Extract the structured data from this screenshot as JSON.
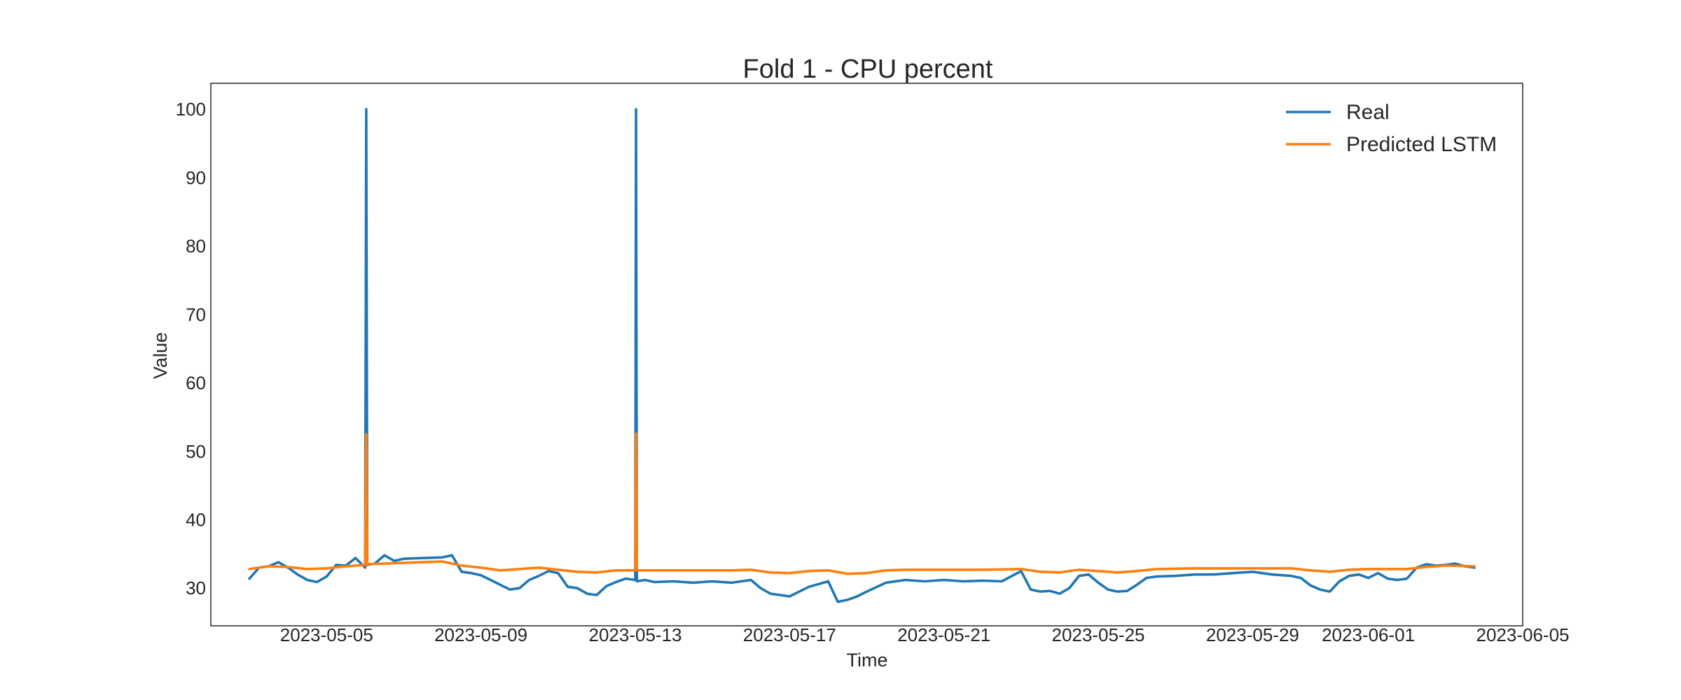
{
  "chart_data": {
    "type": "line",
    "title": "Fold 1 - CPU percent",
    "xlabel": "Time",
    "ylabel": "Value",
    "xlim": [
      "2023-05-02",
      "2023-06-05"
    ],
    "ylim": [
      24.5,
      103.8
    ],
    "x_ticks": [
      "2023-05-05",
      "2023-05-09",
      "2023-05-13",
      "2023-05-17",
      "2023-05-21",
      "2023-05-25",
      "2023-05-29",
      "2023-06-01",
      "2023-06-05"
    ],
    "y_ticks": [
      30,
      40,
      50,
      60,
      70,
      80,
      90,
      100
    ],
    "grid": false,
    "legend": {
      "placement": "top-right"
    },
    "series": [
      {
        "name": "Real",
        "color": "#1f77b4",
        "points": [
          [
            "2023-05-03 00:00",
            31.4
          ],
          [
            "2023-05-03 06:00",
            33.0
          ],
          [
            "2023-05-03 12:00",
            33.2
          ],
          [
            "2023-05-03 18:00",
            33.8
          ],
          [
            "2023-05-04 00:00",
            33.0
          ],
          [
            "2023-05-04 06:00",
            32.0
          ],
          [
            "2023-05-04 12:00",
            31.2
          ],
          [
            "2023-05-04 18:00",
            30.9
          ],
          [
            "2023-05-05 00:00",
            31.7
          ],
          [
            "2023-05-05 06:00",
            33.4
          ],
          [
            "2023-05-05 12:00",
            33.3
          ],
          [
            "2023-05-05 18:00",
            34.4
          ],
          [
            "2023-05-06 00:00",
            33.0
          ],
          [
            "2023-05-06 00:40",
            100.0
          ],
          [
            "2023-05-06 01:20",
            33.4
          ],
          [
            "2023-05-06 06:00",
            33.6
          ],
          [
            "2023-05-06 12:00",
            34.8
          ],
          [
            "2023-05-06 18:00",
            34.0
          ],
          [
            "2023-05-07 00:00",
            34.3
          ],
          [
            "2023-05-07 12:00",
            34.4
          ],
          [
            "2023-05-08 00:00",
            34.5
          ],
          [
            "2023-05-08 06:00",
            34.8
          ],
          [
            "2023-05-08 12:00",
            32.4
          ],
          [
            "2023-05-08 18:00",
            32.2
          ],
          [
            "2023-05-09 00:00",
            31.9
          ],
          [
            "2023-05-09 06:00",
            31.2
          ],
          [
            "2023-05-09 12:00",
            30.5
          ],
          [
            "2023-05-09 18:00",
            29.8
          ],
          [
            "2023-05-10 00:00",
            30.0
          ],
          [
            "2023-05-10 06:00",
            31.2
          ],
          [
            "2023-05-10 12:00",
            31.8
          ],
          [
            "2023-05-10 18:00",
            32.5
          ],
          [
            "2023-05-11 00:00",
            32.2
          ],
          [
            "2023-05-11 06:00",
            30.2
          ],
          [
            "2023-05-11 12:00",
            30.0
          ],
          [
            "2023-05-11 18:00",
            29.2
          ],
          [
            "2023-05-12 00:00",
            29.0
          ],
          [
            "2023-05-12 06:00",
            30.3
          ],
          [
            "2023-05-12 12:00",
            30.9
          ],
          [
            "2023-05-12 18:00",
            31.4
          ],
          [
            "2023-05-13 00:00",
            31.2
          ],
          [
            "2023-05-13 00:30",
            100.0
          ],
          [
            "2023-05-13 01:00",
            31.0
          ],
          [
            "2023-05-13 06:00",
            31.2
          ],
          [
            "2023-05-13 12:00",
            30.9
          ],
          [
            "2023-05-14 00:00",
            31.0
          ],
          [
            "2023-05-14 12:00",
            30.8
          ],
          [
            "2023-05-15 00:00",
            31.0
          ],
          [
            "2023-05-15 12:00",
            30.8
          ],
          [
            "2023-05-16 00:00",
            31.2
          ],
          [
            "2023-05-16 06:00",
            30.0
          ],
          [
            "2023-05-16 12:00",
            29.2
          ],
          [
            "2023-05-16 18:00",
            29.0
          ],
          [
            "2023-05-17 00:00",
            28.8
          ],
          [
            "2023-05-17 12:00",
            30.2
          ],
          [
            "2023-05-18 00:00",
            31.0
          ],
          [
            "2023-05-18 06:00",
            28.0
          ],
          [
            "2023-05-18 12:00",
            28.3
          ],
          [
            "2023-05-18 18:00",
            28.8
          ],
          [
            "2023-05-19 00:00",
            29.5
          ],
          [
            "2023-05-19 12:00",
            30.8
          ],
          [
            "2023-05-20 00:00",
            31.2
          ],
          [
            "2023-05-20 12:00",
            31.0
          ],
          [
            "2023-05-21 00:00",
            31.2
          ],
          [
            "2023-05-21 12:00",
            31.0
          ],
          [
            "2023-05-22 00:00",
            31.1
          ],
          [
            "2023-05-22 12:00",
            31.0
          ],
          [
            "2023-05-23 00:00",
            32.5
          ],
          [
            "2023-05-23 06:00",
            29.8
          ],
          [
            "2023-05-23 12:00",
            29.5
          ],
          [
            "2023-05-23 18:00",
            29.6
          ],
          [
            "2023-05-24 00:00",
            29.2
          ],
          [
            "2023-05-24 06:00",
            30.0
          ],
          [
            "2023-05-24 12:00",
            31.8
          ],
          [
            "2023-05-24 18:00",
            32.0
          ],
          [
            "2023-05-25 00:00",
            30.8
          ],
          [
            "2023-05-25 06:00",
            29.8
          ],
          [
            "2023-05-25 12:00",
            29.5
          ],
          [
            "2023-05-25 18:00",
            29.6
          ],
          [
            "2023-05-26 00:00",
            30.5
          ],
          [
            "2023-05-26 06:00",
            31.5
          ],
          [
            "2023-05-26 12:00",
            31.7
          ],
          [
            "2023-05-27 00:00",
            31.8
          ],
          [
            "2023-05-27 12:00",
            32.0
          ],
          [
            "2023-05-28 00:00",
            32.0
          ],
          [
            "2023-05-28 12:00",
            32.2
          ],
          [
            "2023-05-29 00:00",
            32.4
          ],
          [
            "2023-05-29 12:00",
            32.0
          ],
          [
            "2023-05-30 00:00",
            31.8
          ],
          [
            "2023-05-30 06:00",
            31.5
          ],
          [
            "2023-05-30 12:00",
            30.4
          ],
          [
            "2023-05-30 18:00",
            29.8
          ],
          [
            "2023-05-31 00:00",
            29.5
          ],
          [
            "2023-05-31 06:00",
            31.0
          ],
          [
            "2023-05-31 12:00",
            31.8
          ],
          [
            "2023-05-31 18:00",
            32.0
          ],
          [
            "2023-06-01 00:00",
            31.5
          ],
          [
            "2023-06-01 06:00",
            32.2
          ],
          [
            "2023-06-01 12:00",
            31.4
          ],
          [
            "2023-06-01 18:00",
            31.2
          ],
          [
            "2023-06-02 00:00",
            31.4
          ],
          [
            "2023-06-02 06:00",
            33.0
          ],
          [
            "2023-06-02 12:00",
            33.5
          ],
          [
            "2023-06-02 18:00",
            33.3
          ],
          [
            "2023-06-03 00:00",
            33.4
          ],
          [
            "2023-06-03 06:00",
            33.6
          ],
          [
            "2023-06-03 12:00",
            33.2
          ],
          [
            "2023-06-03 18:00",
            33.0
          ]
        ]
      },
      {
        "name": "Predicted LSTM",
        "color": "#ff7f0e",
        "points": [
          [
            "2023-05-03 00:00",
            32.8
          ],
          [
            "2023-05-03 12:00",
            33.2
          ],
          [
            "2023-05-04 00:00",
            33.1
          ],
          [
            "2023-05-04 12:00",
            32.8
          ],
          [
            "2023-05-05 00:00",
            32.9
          ],
          [
            "2023-05-05 12:00",
            33.2
          ],
          [
            "2023-05-06 00:00",
            33.4
          ],
          [
            "2023-05-06 00:40",
            52.5
          ],
          [
            "2023-05-06 01:20",
            33.5
          ],
          [
            "2023-05-06 12:00",
            33.6
          ],
          [
            "2023-05-07 00:00",
            33.7
          ],
          [
            "2023-05-07 12:00",
            33.8
          ],
          [
            "2023-05-08 00:00",
            33.9
          ],
          [
            "2023-05-08 12:00",
            33.3
          ],
          [
            "2023-05-09 00:00",
            33.0
          ],
          [
            "2023-05-09 12:00",
            32.6
          ],
          [
            "2023-05-10 00:00",
            32.8
          ],
          [
            "2023-05-10 12:00",
            33.0
          ],
          [
            "2023-05-11 00:00",
            32.7
          ],
          [
            "2023-05-11 12:00",
            32.4
          ],
          [
            "2023-05-12 00:00",
            32.3
          ],
          [
            "2023-05-12 12:00",
            32.6
          ],
          [
            "2023-05-13 00:00",
            32.6
          ],
          [
            "2023-05-13 00:30",
            52.6
          ],
          [
            "2023-05-13 01:00",
            32.6
          ],
          [
            "2023-05-13 12:00",
            32.6
          ],
          [
            "2023-05-14 12:00",
            32.6
          ],
          [
            "2023-05-15 12:00",
            32.6
          ],
          [
            "2023-05-16 00:00",
            32.7
          ],
          [
            "2023-05-16 12:00",
            32.3
          ],
          [
            "2023-05-17 00:00",
            32.2
          ],
          [
            "2023-05-17 12:00",
            32.5
          ],
          [
            "2023-05-18 00:00",
            32.6
          ],
          [
            "2023-05-18 12:00",
            32.1
          ],
          [
            "2023-05-19 00:00",
            32.2
          ],
          [
            "2023-05-19 12:00",
            32.6
          ],
          [
            "2023-05-20 00:00",
            32.7
          ],
          [
            "2023-05-21 00:00",
            32.7
          ],
          [
            "2023-05-22 00:00",
            32.7
          ],
          [
            "2023-05-23 00:00",
            32.8
          ],
          [
            "2023-05-23 12:00",
            32.4
          ],
          [
            "2023-05-24 00:00",
            32.3
          ],
          [
            "2023-05-24 12:00",
            32.7
          ],
          [
            "2023-05-25 00:00",
            32.5
          ],
          [
            "2023-05-25 12:00",
            32.3
          ],
          [
            "2023-05-26 00:00",
            32.5
          ],
          [
            "2023-05-26 12:00",
            32.8
          ],
          [
            "2023-05-27 12:00",
            32.9
          ],
          [
            "2023-05-28 12:00",
            32.9
          ],
          [
            "2023-05-29 12:00",
            32.9
          ],
          [
            "2023-05-30 00:00",
            32.9
          ],
          [
            "2023-05-30 12:00",
            32.6
          ],
          [
            "2023-05-31 00:00",
            32.4
          ],
          [
            "2023-05-31 12:00",
            32.7
          ],
          [
            "2023-06-01 00:00",
            32.8
          ],
          [
            "2023-06-01 12:00",
            32.8
          ],
          [
            "2023-06-02 00:00",
            32.8
          ],
          [
            "2023-06-02 12:00",
            33.1
          ],
          [
            "2023-06-03 00:00",
            33.3
          ],
          [
            "2023-06-03 18:00",
            33.2
          ]
        ]
      }
    ]
  }
}
